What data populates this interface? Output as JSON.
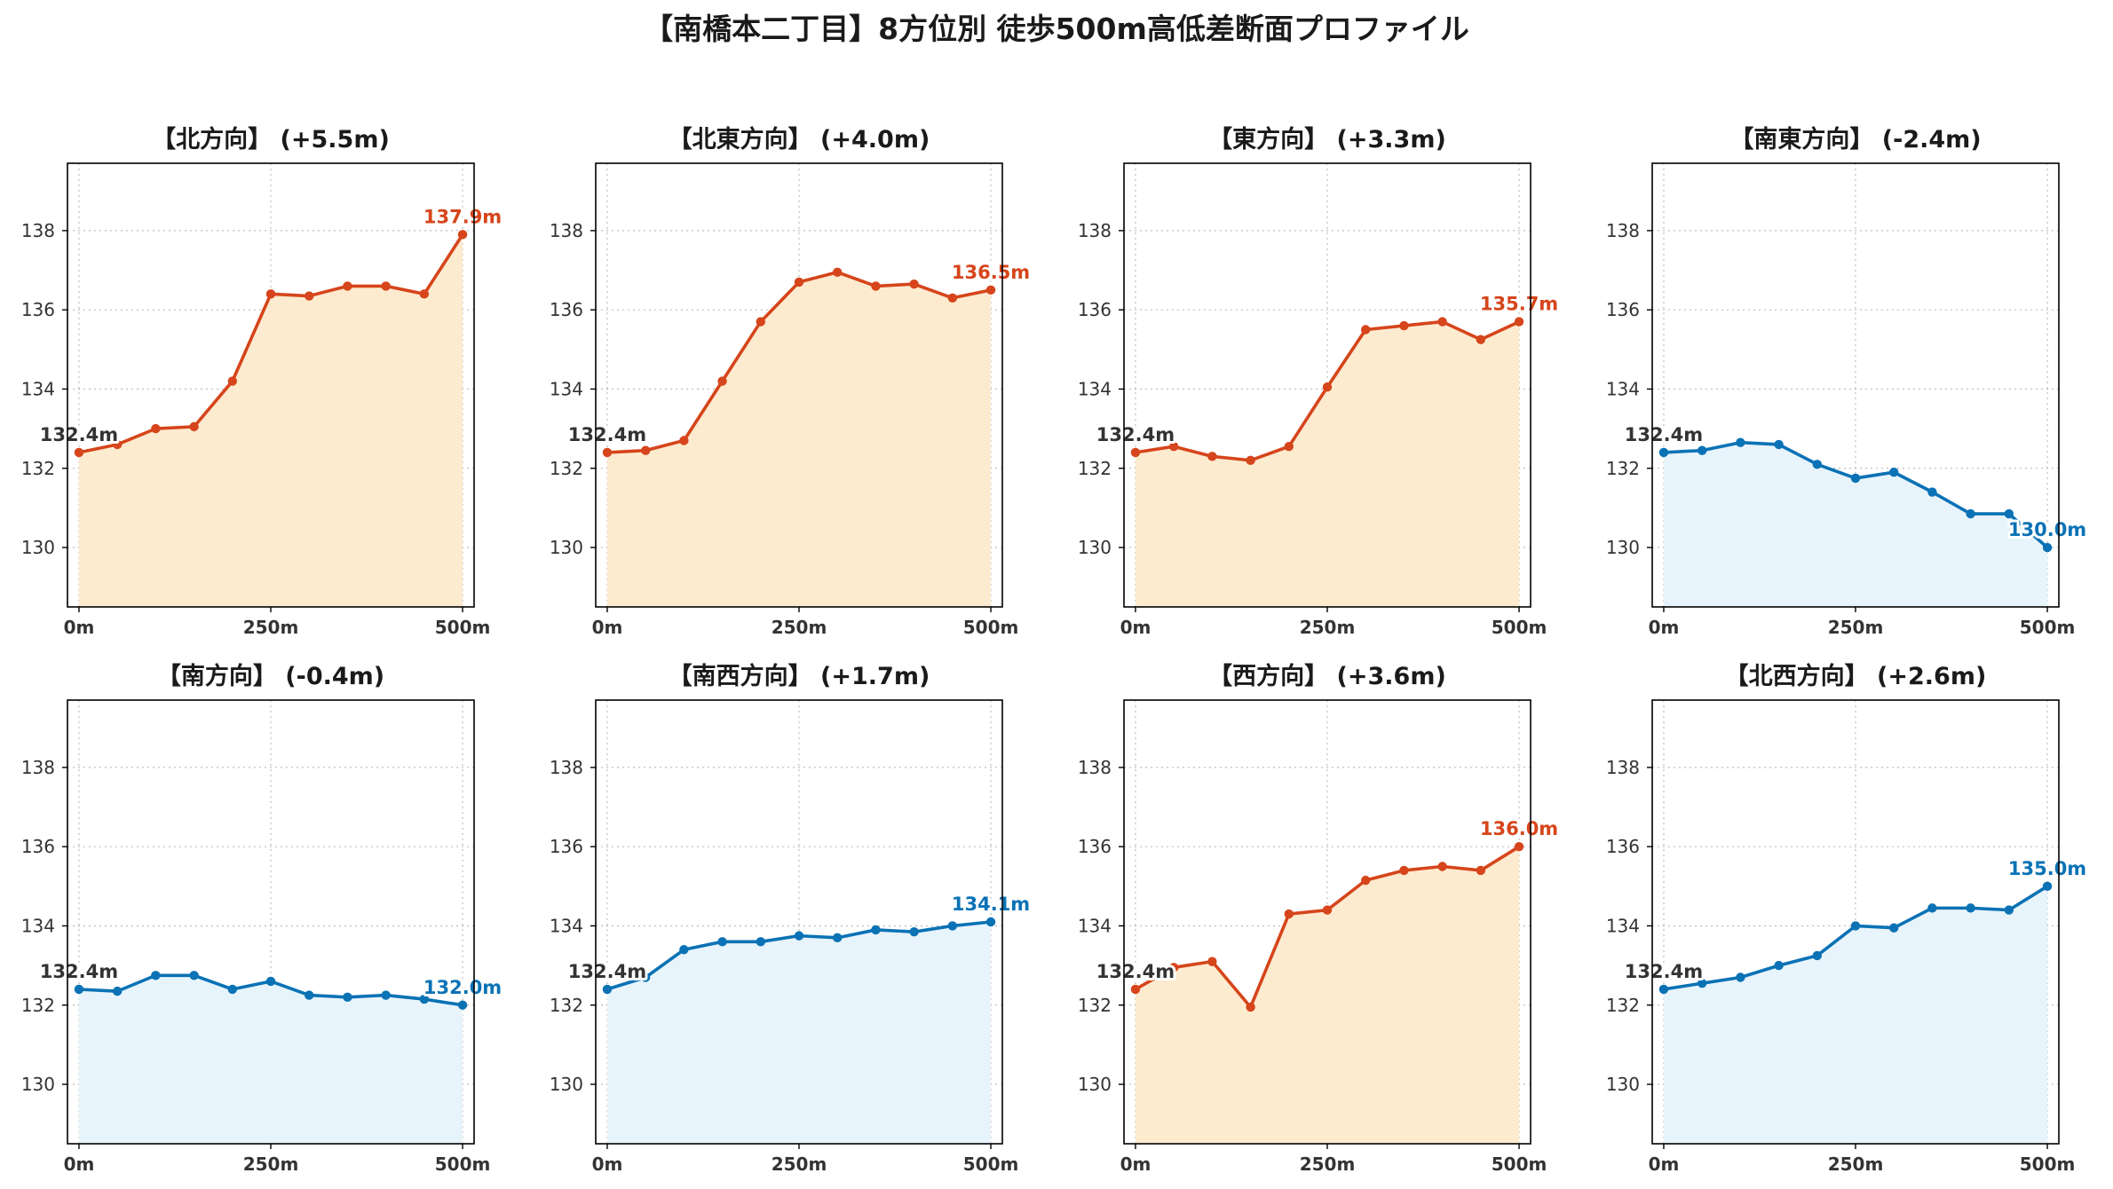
{
  "title": "【南橋本二丁目】8方位別 徒歩500m高低差断面プロファイル",
  "colors": {
    "up_line": "#d6451b",
    "up_fill": "#fdebd0",
    "down_line": "#0a72b5",
    "down_fill": "#e8f4fb"
  },
  "chart_data": [
    {
      "type": "area",
      "title": "【北方向】 (+5.5m)",
      "trend": "up",
      "x": [
        0,
        50,
        100,
        150,
        200,
        250,
        300,
        350,
        400,
        450,
        500
      ],
      "x_tick_values": [
        0,
        250,
        500
      ],
      "x_tick_labels": [
        "0m",
        "250m",
        "500m"
      ],
      "y_ticks": [
        130,
        132,
        134,
        136,
        138
      ],
      "ylim": [
        128.5,
        139.7
      ],
      "xlim": [
        -15,
        515
      ],
      "values": [
        132.4,
        132.6,
        133.0,
        133.05,
        134.2,
        136.4,
        136.35,
        136.6,
        136.6,
        136.4,
        137.9
      ],
      "start_label": "132.4m",
      "end_label": "137.9m"
    },
    {
      "type": "area",
      "title": "【北東方向】 (+4.0m)",
      "trend": "up",
      "x": [
        0,
        50,
        100,
        150,
        200,
        250,
        300,
        350,
        400,
        450,
        500
      ],
      "x_tick_values": [
        0,
        250,
        500
      ],
      "x_tick_labels": [
        "0m",
        "250m",
        "500m"
      ],
      "y_ticks": [
        130,
        132,
        134,
        136,
        138
      ],
      "ylim": [
        128.5,
        139.7
      ],
      "xlim": [
        -15,
        515
      ],
      "values": [
        132.4,
        132.45,
        132.7,
        134.2,
        135.7,
        136.7,
        136.95,
        136.6,
        136.65,
        136.3,
        136.5
      ],
      "start_label": "132.4m",
      "end_label": "136.5m"
    },
    {
      "type": "area",
      "title": "【東方向】 (+3.3m)",
      "trend": "up",
      "x": [
        0,
        50,
        100,
        150,
        200,
        250,
        300,
        350,
        400,
        450,
        500
      ],
      "x_tick_values": [
        0,
        250,
        500
      ],
      "x_tick_labels": [
        "0m",
        "250m",
        "500m"
      ],
      "y_ticks": [
        130,
        132,
        134,
        136,
        138
      ],
      "ylim": [
        128.5,
        139.7
      ],
      "xlim": [
        -15,
        515
      ],
      "values": [
        132.4,
        132.55,
        132.3,
        132.2,
        132.55,
        134.05,
        135.5,
        135.6,
        135.7,
        135.25,
        135.7
      ],
      "start_label": "132.4m",
      "end_label": "135.7m"
    },
    {
      "type": "area",
      "title": "【南東方向】 (-2.4m)",
      "trend": "down",
      "x": [
        0,
        50,
        100,
        150,
        200,
        250,
        300,
        350,
        400,
        450,
        500
      ],
      "x_tick_values": [
        0,
        250,
        500
      ],
      "x_tick_labels": [
        "0m",
        "250m",
        "500m"
      ],
      "y_ticks": [
        130,
        132,
        134,
        136,
        138
      ],
      "ylim": [
        128.5,
        139.7
      ],
      "xlim": [
        -15,
        515
      ],
      "values": [
        132.4,
        132.45,
        132.65,
        132.6,
        132.1,
        131.75,
        131.9,
        131.4,
        130.85,
        130.85,
        130.0
      ],
      "start_label": "132.4m",
      "end_label": "130.0m"
    },
    {
      "type": "area",
      "title": "【南方向】 (-0.4m)",
      "trend": "down",
      "x": [
        0,
        50,
        100,
        150,
        200,
        250,
        300,
        350,
        400,
        450,
        500
      ],
      "x_tick_values": [
        0,
        250,
        500
      ],
      "x_tick_labels": [
        "0m",
        "250m",
        "500m"
      ],
      "y_ticks": [
        130,
        132,
        134,
        136,
        138
      ],
      "ylim": [
        128.5,
        139.7
      ],
      "xlim": [
        -15,
        515
      ],
      "values": [
        132.4,
        132.35,
        132.75,
        132.75,
        132.4,
        132.6,
        132.25,
        132.2,
        132.25,
        132.15,
        132.0
      ],
      "start_label": "132.4m",
      "end_label": "132.0m"
    },
    {
      "type": "area",
      "title": "【南西方向】 (+1.7m)",
      "trend": "down",
      "x": [
        0,
        50,
        100,
        150,
        200,
        250,
        300,
        350,
        400,
        450,
        500
      ],
      "x_tick_values": [
        0,
        250,
        500
      ],
      "x_tick_labels": [
        "0m",
        "250m",
        "500m"
      ],
      "y_ticks": [
        130,
        132,
        134,
        136,
        138
      ],
      "ylim": [
        128.5,
        139.7
      ],
      "xlim": [
        -15,
        515
      ],
      "values": [
        132.4,
        132.7,
        133.4,
        133.6,
        133.6,
        133.75,
        133.7,
        133.9,
        133.85,
        134.0,
        134.1
      ],
      "start_label": "132.4m",
      "end_label": "134.1m"
    },
    {
      "type": "area",
      "title": "【西方向】 (+3.6m)",
      "trend": "up",
      "x": [
        0,
        50,
        100,
        150,
        200,
        250,
        300,
        350,
        400,
        450,
        500
      ],
      "x_tick_values": [
        0,
        250,
        500
      ],
      "x_tick_labels": [
        "0m",
        "250m",
        "500m"
      ],
      "y_ticks": [
        130,
        132,
        134,
        136,
        138
      ],
      "ylim": [
        128.5,
        139.7
      ],
      "xlim": [
        -15,
        515
      ],
      "values": [
        132.4,
        132.95,
        133.1,
        131.95,
        134.3,
        134.4,
        135.15,
        135.4,
        135.5,
        135.4,
        136.0
      ],
      "start_label": "132.4m",
      "end_label": "136.0m"
    },
    {
      "type": "area",
      "title": "【北西方向】 (+2.6m)",
      "trend": "down",
      "x": [
        0,
        50,
        100,
        150,
        200,
        250,
        300,
        350,
        400,
        450,
        500
      ],
      "x_tick_values": [
        0,
        250,
        500
      ],
      "x_tick_labels": [
        "0m",
        "250m",
        "500m"
      ],
      "y_ticks": [
        130,
        132,
        134,
        136,
        138
      ],
      "ylim": [
        128.5,
        139.7
      ],
      "xlim": [
        -15,
        515
      ],
      "values": [
        132.4,
        132.55,
        132.7,
        133.0,
        133.25,
        134.0,
        133.95,
        134.45,
        134.45,
        134.4,
        135.0
      ],
      "start_label": "132.4m",
      "end_label": "135.0m"
    }
  ]
}
